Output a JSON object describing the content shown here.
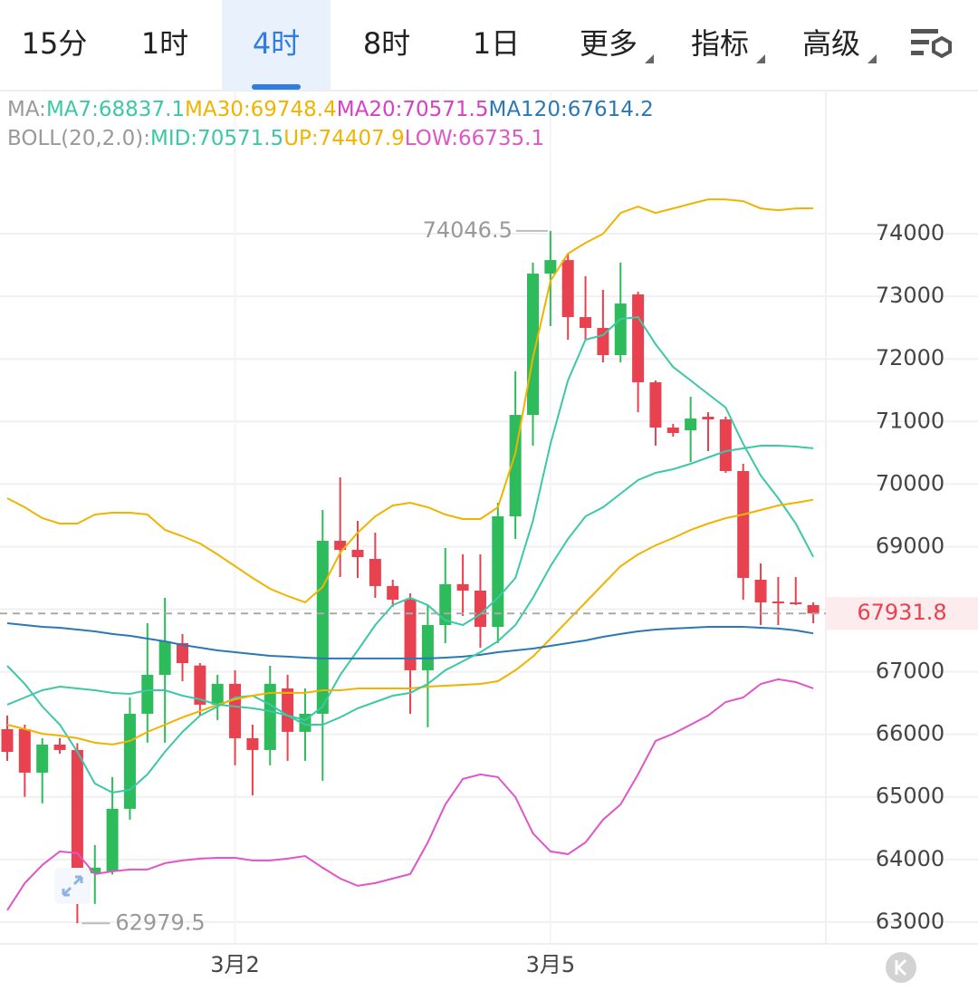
{
  "chart_data": {
    "type": "candlestick",
    "tabs": [
      "15分",
      "1时",
      "4时",
      "8时",
      "1日",
      "更多",
      "指标",
      "高级"
    ],
    "selected_tab": 2,
    "categories": [
      null,
      null,
      null,
      null,
      null,
      null,
      null,
      null,
      null,
      null,
      null,
      null,
      null,
      "3月2",
      null,
      null,
      null,
      null,
      null,
      null,
      null,
      null,
      null,
      null,
      null,
      null,
      null,
      null,
      null,
      null,
      null,
      "3月5",
      null,
      null,
      null,
      null,
      null,
      null,
      null,
      null,
      null,
      null,
      null,
      null,
      null,
      null,
      null
    ],
    "open": [
      66083,
      66083,
      65388,
      65836,
      65750,
      63780,
      63810,
      64810,
      66329,
      66951,
      67458,
      67100,
      66474,
      66807,
      65938,
      65750,
      66734,
      66040,
      66329,
      69093,
      68949,
      68804,
      68370,
      68152,
      67024,
      67747,
      68399,
      68297,
      67718,
      69484,
      71105,
      73363,
      73580,
      72668,
      72495,
      72061,
      73030,
      71626,
      70903,
      70859,
      71076,
      71033,
      70208,
      68471,
      68123,
      68109,
      68066
    ],
    "close": [
      65720,
      65388,
      65836,
      65750,
      63810,
      63870,
      64810,
      66329,
      66951,
      67487,
      67139,
      66474,
      66807,
      65938,
      65750,
      66807,
      66040,
      66329,
      69093,
      68949,
      68833,
      68370,
      68152,
      67024,
      67747,
      68399,
      68297,
      67718,
      69484,
      71105,
      73363,
      73580,
      72668,
      72495,
      72061,
      72885,
      71626,
      70903,
      70816,
      71047,
      71033,
      70208,
      68500,
      68109,
      68094,
      68094,
      67931.8
    ],
    "high": [
      66300,
      66155,
      65938,
      65938,
      65860,
      64230,
      65316,
      66590,
      67776,
      68181,
      67603,
      67139,
      66951,
      67023,
      66155,
      67096,
      66951,
      66734,
      69585,
      70107,
      69412,
      69224,
      68471,
      68254,
      68066,
      68977,
      68876,
      68876,
      69701,
      71800,
      73537,
      74046.5,
      73682,
      73320,
      73103,
      73537,
      73074,
      71655,
      70960,
      71395,
      71149,
      71076,
      70324,
      68731,
      68514,
      68514,
      68109
    ],
    "low": [
      65577,
      65000,
      64896,
      65690,
      62979.5,
      63290,
      63760,
      64636,
      65866,
      65866,
      66850,
      66300,
      66228,
      65504,
      65026,
      65504,
      65577,
      65577,
      65258,
      68514,
      68500,
      68181,
      68037,
      66329,
      66112,
      67458,
      67892,
      67385,
      67458,
      69122,
      70613,
      72524,
      72307,
      72307,
      71945,
      71945,
      71149,
      70613,
      70758,
      70353,
      70526,
      70179,
      68152,
      67747,
      67747,
      68066,
      67776
    ],
    "up_color": "#2dbb5b",
    "down_color": "#e8414f",
    "indicators": [
      {
        "label": "MA:",
        "series": [
          {
            "name": "MA7:",
            "color": "#3cc8a6",
            "values": [
              67096,
              66806,
              66445,
              66155,
              65721,
              65214,
              65070,
              65113,
              65359,
              65721,
              66039,
              66300,
              66445,
              66589,
              66618,
              66474,
              66300,
              66227,
              66445,
              66951,
              67342,
              67747,
              68066,
              68181,
              68066,
              67820,
              67747,
              67921,
              68181,
              68500,
              69412,
              70642,
              71655,
              72307,
              72379,
              72639,
              72668,
              72234,
              71872,
              71655,
              71438,
              71221,
              70642,
              70135,
              69774,
              69368,
              68837.1
            ]
          },
          {
            "name": "MA30:",
            "color": "#f0b400",
            "values": [
              66155,
              66083,
              66010,
              65981,
              65938,
              65866,
              65837,
              65895,
              66039,
              66155,
              66271,
              66372,
              66474,
              66560,
              66618,
              66662,
              66662,
              66662,
              66705,
              66705,
              66734,
              66734,
              66734,
              66734,
              66763,
              66777,
              66792,
              66806,
              66850,
              67024,
              67241,
              67530,
              67820,
              68109,
              68399,
              68688,
              68876,
              69021,
              69137,
              69267,
              69368,
              69455,
              69513,
              69585,
              69658,
              69701,
              69748.4
            ]
          },
          {
            "name": "MA20:",
            "color": "#d83fc4",
            "value": 70571.5
          },
          {
            "name": "MA120:",
            "color": "#2a78b6",
            "values": [
              67776,
              67747,
              67718,
              67704,
              67675,
              67646,
              67603,
              67574,
              67530,
              67487,
              67429,
              67385,
              67342,
              67313,
              67284,
              67255,
              67241,
              67226,
              67212,
              67212,
              67212,
              67212,
              67212,
              67212,
              67212,
              67226,
              67241,
              67270,
              67313,
              67342,
              67371,
              67414,
              67458,
              67501,
              67559,
              67603,
              67646,
              67675,
              67690,
              67704,
              67718,
              67718,
              67718,
              67704,
              67690,
              67661,
              67614.2
            ]
          }
        ]
      },
      {
        "label": "BOLL(20,2.0):",
        "series": [
          {
            "name": "MID:",
            "color": "#3cc8a6",
            "values": [
              66474,
              66589,
              66705,
              66763,
              66734,
              66705,
              66662,
              66647,
              66705,
              66705,
              66618,
              66560,
              66474,
              66445,
              66416,
              66372,
              66300,
              66155,
              66155,
              66271,
              66416,
              66517,
              66618,
              66662,
              66806,
              67024,
              67168,
              67313,
              67487,
              67747,
              68181,
              68688,
              69122,
              69484,
              69629,
              69846,
              70063,
              70179,
              70237,
              70324,
              70425,
              70526,
              70570,
              70613,
              70613,
              70599,
              70571.5
            ]
          },
          {
            "name": "UP:",
            "color": "#f0b400",
            "values": [
              69774,
              69629,
              69455,
              69368,
              69368,
              69513,
              69542,
              69542,
              69513,
              69267,
              69166,
              69050,
              68876,
              68688,
              68500,
              68326,
              68210,
              68109,
              68355,
              68905,
              69224,
              69484,
              69658,
              69701,
              69629,
              69513,
              69441,
              69441,
              69629,
              70497,
              72017,
              73247,
              73682,
              73855,
              74000,
              74333,
              74434,
              74333,
              74405,
              74478,
              74550,
              74550,
              74521,
              74405,
              74376,
              74405,
              74407.9
            ]
          },
          {
            "name": "LOW:",
            "color": "#e055c8",
            "values": [
              63188,
              63622,
              63912,
              64129,
              64100,
              63767,
              63810,
              63839,
              63839,
              63941,
              63984,
              64013,
              64027,
              64027,
              63984,
              63984,
              64013,
              64056,
              63868,
              63695,
              63579,
              63622,
              63695,
              63767,
              64273,
              64881,
              65287,
              65359,
              65316,
              64997,
              64418,
              64129,
              64085,
              64273,
              64635,
              64881,
              65359,
              65895,
              66010,
              66155,
              66300,
              66517,
              66589,
              66806,
              66879,
              66835,
              66735.1
            ]
          }
        ]
      }
    ],
    "ylim": [
      62680,
      75130
    ],
    "yticks": [
      63000,
      64000,
      65000,
      66000,
      67000,
      68000,
      69000,
      70000,
      71000,
      72000,
      73000,
      74000
    ],
    "grid": true
  }
}
